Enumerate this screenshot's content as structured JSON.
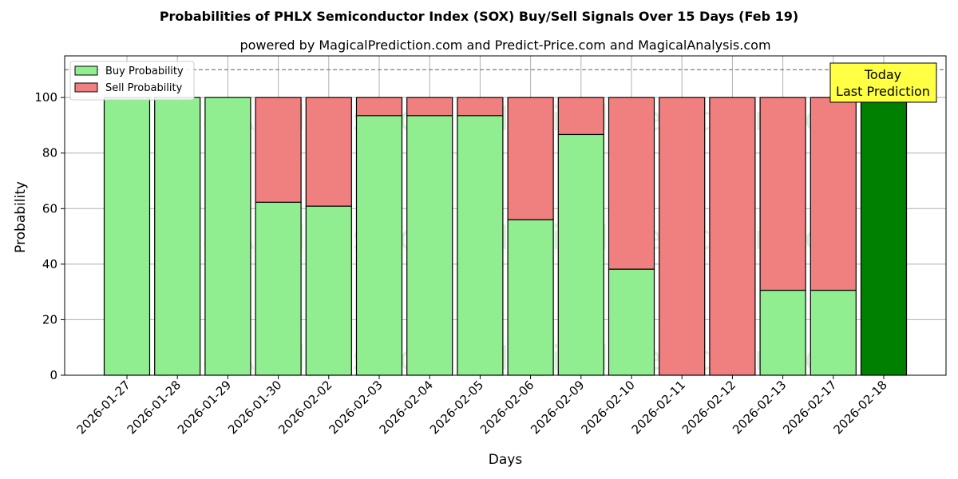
{
  "chart_data": {
    "type": "bar",
    "stacked": true,
    "title": "Probabilities of PHLX Semiconductor Index (SOX) Buy/Sell Signals Over 15 Days (Feb 19)",
    "subtitle": "powered by MagicalPrediction.com and Predict-Price.com and MagicalAnalysis.com",
    "xlabel": "Days",
    "ylabel": "Probability",
    "ylim": [
      0,
      115
    ],
    "yticks": [
      0,
      20,
      40,
      60,
      80,
      100
    ],
    "grid": true,
    "legend_position": "top-left",
    "reference_line": 110,
    "categories": [
      "2026-01-27",
      "2026-01-28",
      "2026-01-29",
      "2026-01-30",
      "2026-02-02",
      "2026-02-03",
      "2026-02-04",
      "2026-02-05",
      "2026-02-06",
      "2026-02-09",
      "2026-02-10",
      "2026-02-11",
      "2026-02-12",
      "2026-02-13",
      "2026-02-17",
      "2026-02-18"
    ],
    "series": [
      {
        "name": "Buy Probability",
        "color": "#90ee90",
        "values": [
          100,
          100,
          100,
          62.3,
          60.9,
          93.5,
          93.5,
          93.5,
          56,
          86.7,
          38.2,
          0,
          0,
          30.6,
          30.6,
          100
        ]
      },
      {
        "name": "Sell Probability",
        "color": "#f08080",
        "values": [
          0,
          0,
          0,
          37.7,
          39.1,
          6.5,
          6.5,
          6.5,
          44,
          13.3,
          61.8,
          100,
          100,
          69.4,
          69.4,
          0
        ]
      }
    ],
    "today_index": 15,
    "today_color": "#008000",
    "annotation": {
      "line1": "Today",
      "line2": "Last Prediction",
      "background": "#ffff44"
    },
    "watermarks": [
      "MagicalAnalysis.com",
      "MagicalPrediction.com"
    ]
  }
}
